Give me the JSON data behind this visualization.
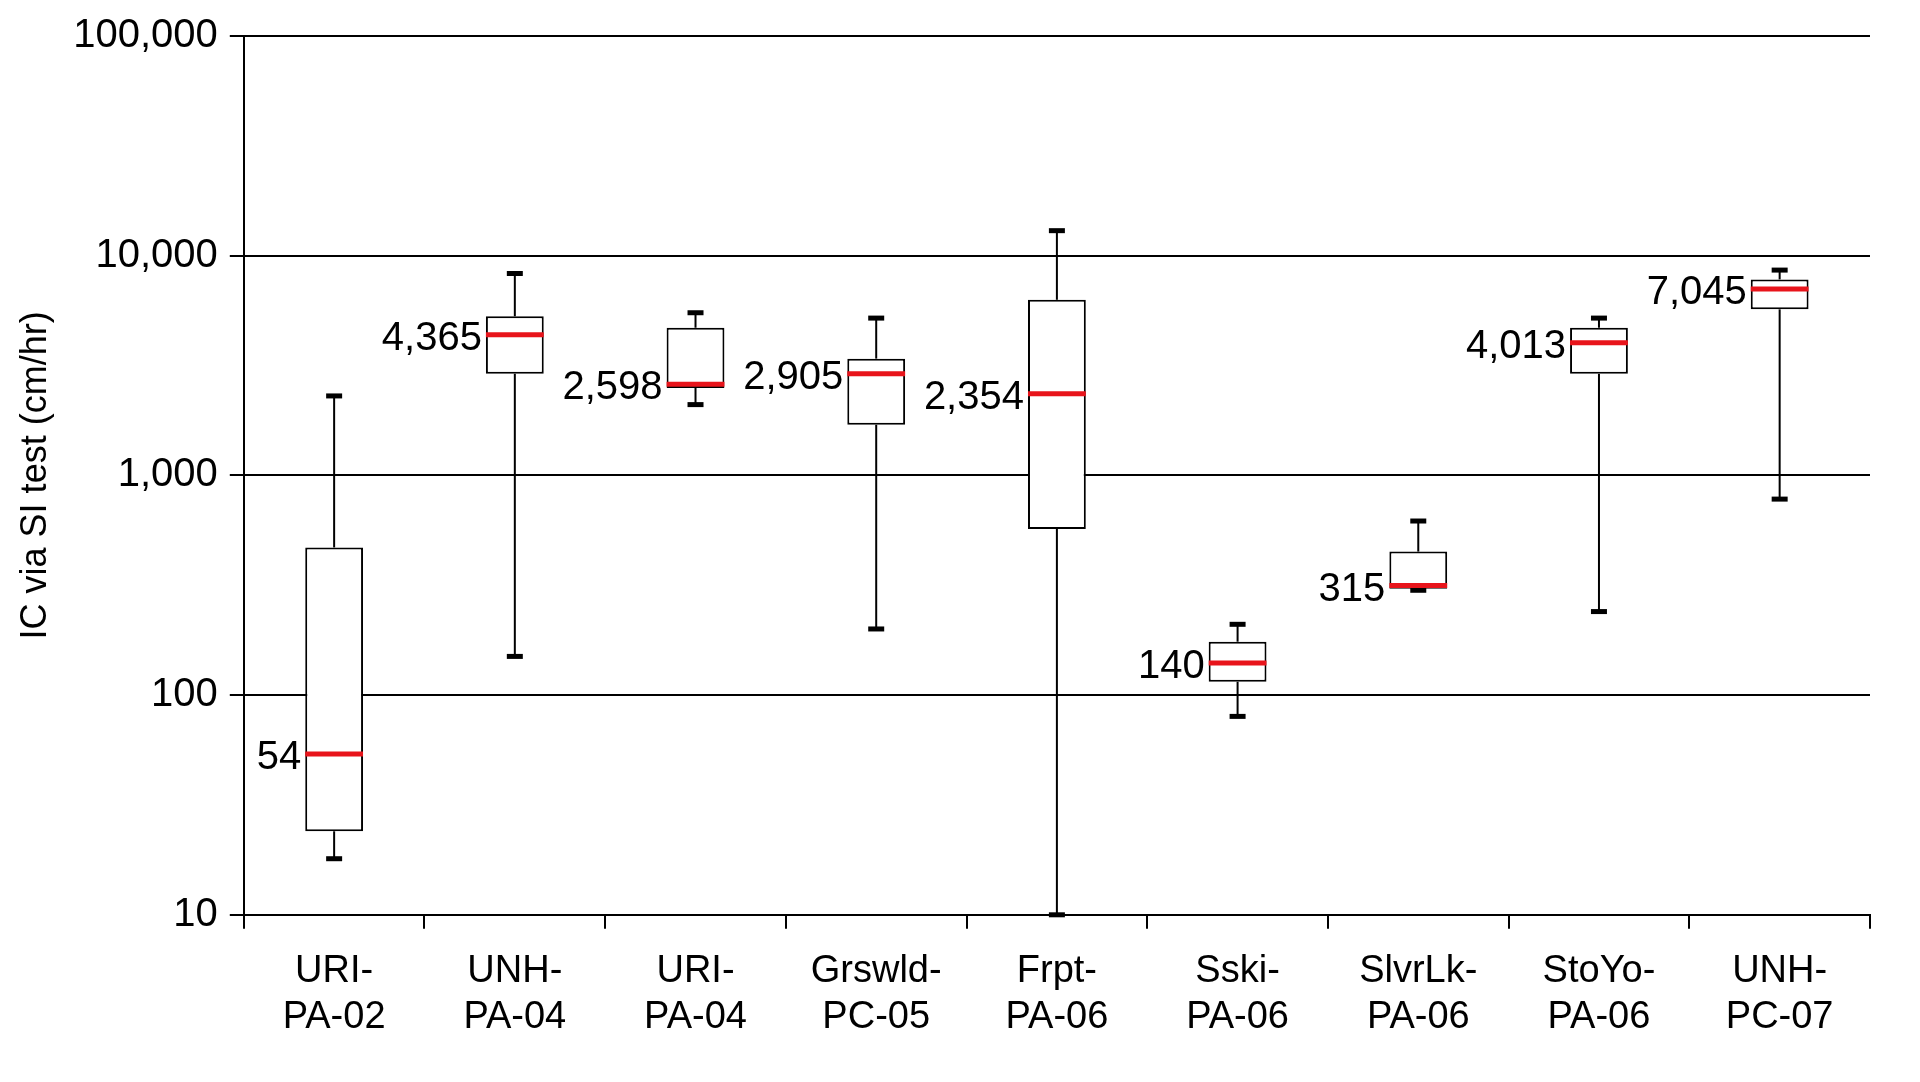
{
  "chart_data": {
    "type": "box",
    "ylabel": "IC via SI test (cm/hr)",
    "log": "y",
    "grid": "y",
    "categories": [
      "URI-PA-02",
      "UNH-PA-04",
      "URI-PA-04",
      "Grswld-PC-05",
      "Frpt-PA-06",
      "Sski-PA-06",
      "SlvrLk-PA-06",
      "StoYo-PA-06",
      "UNH-PC-07"
    ],
    "ylim": [
      10,
      100000
    ],
    "yticks": [
      10,
      100,
      {
        "value": 1000,
        "label": "1,000"
      },
      {
        "value": 10000,
        "label": "10,000"
      },
      {
        "value": 100000,
        "label": "100,000"
      }
    ],
    "series": [
      {
        "color": "#000000",
        "value_labels": [
          "54",
          "4,365",
          "2,598",
          "2,905",
          "2,354",
          "140",
          "315",
          "4,013",
          "7,045"
        ],
        "boxes": [
          {
            "low": 18,
            "q1": 24,
            "median": 54,
            "q3": 470,
            "high": 2300
          },
          {
            "low": 150,
            "q1": 2900,
            "median": 4365,
            "q3": 5300,
            "high": 8300
          },
          {
            "low": 2100,
            "q1": 2500,
            "median": 2598,
            "q3": 4700,
            "high": 5500
          },
          {
            "low": 200,
            "q1": 1700,
            "median": 2905,
            "q3": 3400,
            "high": 5200
          },
          {
            "low": 10,
            "q1": 570,
            "median": 2354,
            "q3": 6300,
            "high": 13000
          },
          {
            "low": 80,
            "q1": 115,
            "median": 140,
            "q3": 175,
            "high": 210
          },
          {
            "low": 300,
            "q1": 305,
            "median": 315,
            "q3": 450,
            "high": 620
          },
          {
            "low": 240,
            "q1": 2900,
            "median": 4013,
            "q3": 4700,
            "high": 5200
          },
          {
            "low": 780,
            "q1": 5700,
            "median": 7045,
            "q3": 7800,
            "high": 8600
          }
        ]
      }
    ]
  }
}
